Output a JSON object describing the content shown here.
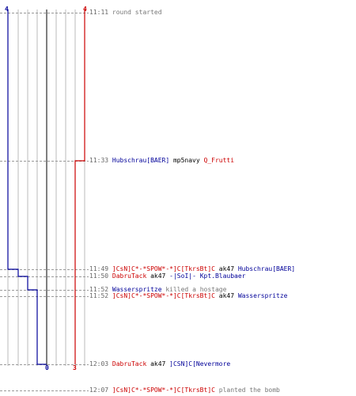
{
  "colors": {
    "ct": "#cc0000",
    "tr": "#000099",
    "time": "#666666",
    "grid": "#bbbbbb",
    "center": "#555555",
    "dash": "#999999"
  },
  "axis": {
    "top_left": "4",
    "top_right": "4",
    "bottom_center": "0",
    "bottom_right": "3"
  },
  "chart_data": {
    "type": "line",
    "series": [
      {
        "name": "tr_alive",
        "times": [
          "11:11",
          "11:49",
          "11:50",
          "11:52",
          "11:52",
          "12:03"
        ],
        "values": [
          4,
          4,
          3,
          2,
          1,
          0
        ]
      },
      {
        "name": "ct_alive",
        "times": [
          "11:11",
          "11:33",
          "12:03"
        ],
        "values": [
          4,
          3,
          3
        ]
      }
    ],
    "ylim": [
      0,
      4
    ]
  },
  "events": [
    {
      "time": "11:11",
      "parts": [
        {
          "text": "round started",
          "c": "g"
        }
      ]
    },
    {
      "time": "11:33",
      "parts": [
        {
          "text": "Hubschrau[BAER]",
          "c": "tr"
        },
        {
          "text": " mp5navy ",
          "c": "w"
        },
        {
          "text": "Q_Frutti",
          "c": "ct"
        }
      ]
    },
    {
      "time": "11:49",
      "parts": [
        {
          "text": "]CsN]C*-*SPOW*-*]C[TkrsBt]C",
          "c": "ct"
        },
        {
          "text": " ak47 ",
          "c": "w"
        },
        {
          "text": "Hubschrau[BAER]",
          "c": "tr"
        }
      ]
    },
    {
      "time": "11:50",
      "parts": [
        {
          "text": "DabruTack",
          "c": "ct"
        },
        {
          "text": " ak47 ",
          "c": "w"
        },
        {
          "text": "-|SoI|- Kpt.Blaubaer",
          "c": "tr"
        }
      ]
    },
    {
      "time": "11:52",
      "parts": [
        {
          "text": "Wasserspritze",
          "c": "tr"
        },
        {
          "text": " killed a hostage",
          "c": "g"
        }
      ]
    },
    {
      "time": "11:52",
      "parts": [
        {
          "text": "]CsN]C*-*SPOW*-*]C[TkrsBt]C",
          "c": "ct"
        },
        {
          "text": " ak47 ",
          "c": "w"
        },
        {
          "text": "Wasserspritze",
          "c": "tr"
        }
      ]
    },
    {
      "time": "12:03",
      "parts": [
        {
          "text": "DabruTack",
          "c": "ct"
        },
        {
          "text": " ak47 ",
          "c": "w"
        },
        {
          "text": "]CSN]C[Nevermore",
          "c": "tr"
        }
      ]
    },
    {
      "time": "12:07",
      "parts": [
        {
          "text": "]CsN]C*-*SPOW*-*]C[TkrsBt]C",
          "c": "ct"
        },
        {
          "text": " planted the bomb",
          "c": "g"
        }
      ]
    }
  ]
}
